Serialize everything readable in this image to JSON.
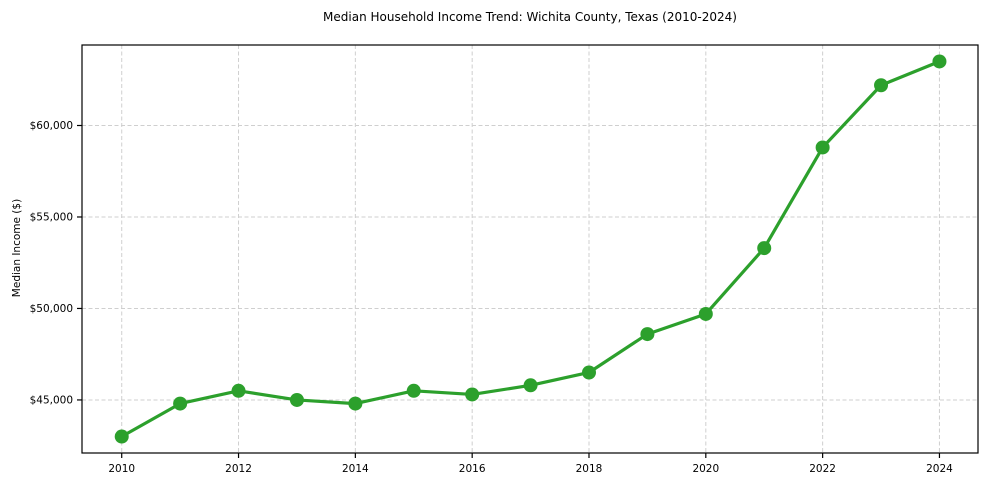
{
  "chart_data": {
    "type": "line",
    "title": "Median Household Income Trend: Wichita County, Texas (2010-2024)",
    "xlabel": "",
    "ylabel": "Median Income ($)",
    "x": [
      2010,
      2011,
      2012,
      2013,
      2014,
      2015,
      2016,
      2017,
      2018,
      2019,
      2020,
      2021,
      2022,
      2023,
      2024
    ],
    "values": [
      43000,
      44800,
      45500,
      45000,
      44800,
      45500,
      45300,
      45800,
      46500,
      48600,
      49700,
      53300,
      58800,
      62200,
      63500
    ],
    "series_name": "Median Household Income",
    "xlim": [
      2009.32,
      2024.66
    ],
    "ylim": [
      42100,
      64400
    ],
    "xticks": [
      {
        "value": 2010,
        "label": "2010"
      },
      {
        "value": 2012,
        "label": "2012"
      },
      {
        "value": 2014,
        "label": "2014"
      },
      {
        "value": 2016,
        "label": "2016"
      },
      {
        "value": 2018,
        "label": "2018"
      },
      {
        "value": 2020,
        "label": "2020"
      },
      {
        "value": 2022,
        "label": "2022"
      },
      {
        "value": 2024,
        "label": "2024"
      }
    ],
    "yticks": [
      {
        "value": 45000,
        "label": "$45,000"
      },
      {
        "value": 50000,
        "label": "$50,000"
      },
      {
        "value": 55000,
        "label": "$55,000"
      },
      {
        "value": 60000,
        "label": "$60,000"
      }
    ],
    "grid": true,
    "legend": false,
    "colors": {
      "line": "#2ca02c",
      "marker": "#2ca02c",
      "grid": "#cfcfcf",
      "spine": "#000000",
      "background": "#ffffff"
    }
  }
}
